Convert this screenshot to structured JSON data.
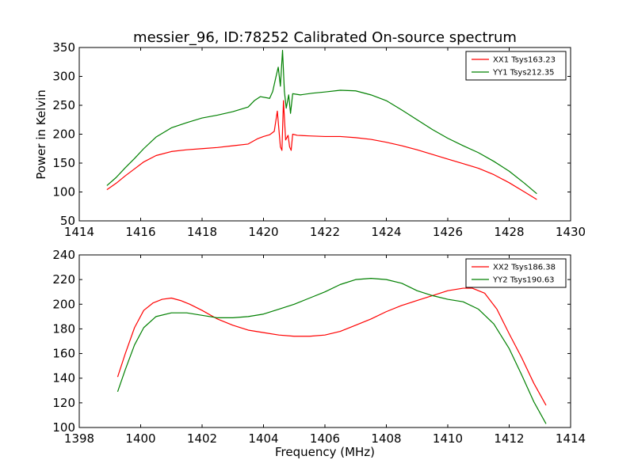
{
  "figure": {
    "title": "messier_96, ID:78252 Calibrated On-source spectrum",
    "ylabel": "Power in Kelvin",
    "xlabel": "Frequency (MHz)"
  },
  "chart_data": [
    {
      "type": "line",
      "title": "messier_96, ID:78252 Calibrated On-source spectrum",
      "xlabel": "",
      "ylabel": "Power in Kelvin",
      "xlim": [
        1414,
        1430
      ],
      "ylim": [
        50,
        350
      ],
      "xticks": [
        "1414",
        "1416",
        "1418",
        "1420",
        "1422",
        "1424",
        "1426",
        "1428",
        "1430"
      ],
      "yticks": [
        "50",
        "100",
        "150",
        "200",
        "250",
        "300",
        "350"
      ],
      "grid": false,
      "legend": "top-right",
      "series": [
        {
          "name": "XX1 Tsys163.23",
          "color": "#ff0000",
          "x": [
            1414.9,
            1415.2,
            1415.5,
            1415.8,
            1416.1,
            1416.5,
            1417.0,
            1417.5,
            1418.0,
            1418.5,
            1419.0,
            1419.5,
            1419.8,
            1420.0,
            1420.2,
            1420.35,
            1420.45,
            1420.55,
            1420.6,
            1420.65,
            1420.72,
            1420.8,
            1420.85,
            1420.9,
            1420.95,
            1421.1,
            1421.5,
            1422.0,
            1422.5,
            1423.0,
            1423.5,
            1424.0,
            1424.5,
            1425.0,
            1425.5,
            1426.0,
            1426.5,
            1427.0,
            1427.5,
            1428.0,
            1428.5,
            1428.9
          ],
          "y": [
            104,
            115,
            128,
            140,
            152,
            163,
            170,
            173,
            175,
            177,
            180,
            183,
            192,
            196,
            199,
            205,
            240,
            178,
            172,
            258,
            190,
            198,
            178,
            172,
            200,
            198,
            197,
            196,
            196,
            194,
            191,
            186,
            180,
            173,
            165,
            157,
            149,
            141,
            130,
            116,
            100,
            87
          ],
          "note_skip": ""
        },
        {
          "name": "YY1 Tsys212.35",
          "color": "#008000",
          "x": [
            1414.9,
            1415.2,
            1415.5,
            1415.8,
            1416.1,
            1416.5,
            1417.0,
            1417.5,
            1418.0,
            1418.5,
            1419.0,
            1419.5,
            1419.7,
            1419.9,
            1420.2,
            1420.3,
            1420.4,
            1420.48,
            1420.55,
            1420.62,
            1420.68,
            1420.74,
            1420.82,
            1420.88,
            1420.95,
            1421.2,
            1421.6,
            1422.0,
            1422.5,
            1423.0,
            1423.5,
            1424.0,
            1424.5,
            1425.0,
            1425.5,
            1426.0,
            1426.5,
            1427.0,
            1427.5,
            1428.0,
            1428.5,
            1428.9
          ],
          "y": [
            111,
            125,
            142,
            158,
            175,
            195,
            211,
            220,
            228,
            233,
            239,
            247,
            258,
            265,
            262,
            274,
            298,
            316,
            283,
            345,
            274,
            245,
            268,
            236,
            270,
            268,
            271,
            273,
            276,
            275,
            268,
            258,
            242,
            225,
            208,
            193,
            180,
            168,
            153,
            136,
            115,
            97
          ]
        }
      ]
    },
    {
      "type": "line",
      "title": "",
      "xlabel": "Frequency (MHz)",
      "ylabel": "",
      "xlim": [
        1398,
        1414
      ],
      "ylim": [
        100,
        240
      ],
      "xticks": [
        "1398",
        "1400",
        "1402",
        "1404",
        "1406",
        "1408",
        "1410",
        "1412",
        "1414"
      ],
      "yticks": [
        "100",
        "120",
        "140",
        "160",
        "180",
        "200",
        "220",
        "240"
      ],
      "grid": false,
      "legend": "top-right",
      "series": [
        {
          "name": "XX2 Tsys186.38",
          "color": "#ff0000",
          "x": [
            1399.25,
            1399.5,
            1399.8,
            1400.1,
            1400.4,
            1400.7,
            1401.0,
            1401.3,
            1401.6,
            1402.0,
            1402.5,
            1403.0,
            1403.5,
            1404.0,
            1404.5,
            1405.0,
            1405.5,
            1406.0,
            1406.5,
            1407.0,
            1407.5,
            1408.0,
            1408.5,
            1409.0,
            1409.5,
            1410.0,
            1410.5,
            1410.8,
            1411.2,
            1411.6,
            1412.0,
            1412.4,
            1412.8,
            1413.2
          ],
          "y": [
            141,
            160,
            181,
            195,
            201,
            204,
            205,
            203,
            200,
            195,
            188,
            183,
            179,
            177,
            175,
            174,
            174,
            175,
            178,
            183,
            188,
            194,
            199,
            203,
            207,
            211,
            213,
            213,
            209,
            196,
            176,
            157,
            136,
            118
          ]
        },
        {
          "name": "YY2 Tsys190.63",
          "color": "#008000",
          "x": [
            1399.25,
            1399.5,
            1399.8,
            1400.1,
            1400.5,
            1401.0,
            1401.5,
            1402.0,
            1402.5,
            1403.0,
            1403.5,
            1404.0,
            1404.5,
            1405.0,
            1405.5,
            1406.0,
            1406.5,
            1407.0,
            1407.5,
            1408.0,
            1408.5,
            1409.0,
            1409.5,
            1410.0,
            1410.5,
            1411.0,
            1411.5,
            1412.0,
            1412.4,
            1412.8,
            1413.2
          ],
          "y": [
            129,
            147,
            167,
            181,
            190,
            193,
            193,
            191,
            189,
            189,
            190,
            192,
            196,
            200,
            205,
            210,
            216,
            220,
            221,
            220,
            217,
            211,
            207,
            204,
            202,
            196,
            184,
            164,
            143,
            121,
            103
          ]
        }
      ]
    }
  ]
}
